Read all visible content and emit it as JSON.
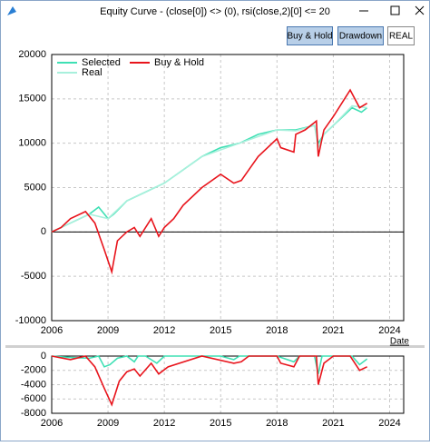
{
  "window": {
    "title": "Equity Curve - (close[0]) <> (0), rsi(close,2)[0] <= 20",
    "buttons": [
      "Buy & Hold",
      "Drawdown",
      "REAL"
    ]
  },
  "chart_data": [
    {
      "type": "line",
      "x_label": "Date",
      "legend": "upper left",
      "grid": true,
      "xlim": [
        2006,
        2024.75
      ],
      "xticks": [
        2006,
        2009,
        2012,
        2015,
        2018,
        2021,
        2024
      ],
      "ylim": [
        -10000,
        20000
      ],
      "yticks": [
        -10000,
        -5000,
        0,
        5000,
        10000,
        15000,
        20000
      ],
      "series": [
        {
          "name": "Selected",
          "color": "#3ee0b4",
          "x": [
            2006,
            2007,
            2008,
            2008.5,
            2009.0,
            2009.3,
            2010,
            2011,
            2012,
            2013,
            2014,
            2015,
            2016,
            2017,
            2018,
            2019,
            2020,
            2020.2,
            2020.5,
            2021,
            2022,
            2022.5,
            2022.8
          ],
          "values": [
            0,
            1000,
            2000,
            2800,
            1500,
            2000,
            3500,
            4500,
            5500,
            7000,
            8500,
            9500,
            10000,
            11000,
            11500,
            11500,
            12000,
            10000,
            11000,
            12000,
            14000,
            13500,
            14000
          ]
        },
        {
          "name": "Real",
          "color": "#a8f0dc",
          "x": [
            2006,
            2008,
            2009.0,
            2010,
            2012,
            2014,
            2016,
            2018,
            2019,
            2020,
            2020.2,
            2020.5,
            2021,
            2022,
            2022.8
          ],
          "values": [
            0,
            2000,
            1500,
            3500,
            5500,
            8500,
            10000,
            11500,
            11400,
            12000,
            9500,
            11000,
            12000,
            14200,
            14000
          ]
        },
        {
          "name": "Buy & Hold",
          "color": "#e8141c",
          "x": [
            2006,
            2006.5,
            2007,
            2007.8,
            2008.3,
            2008.8,
            2009.2,
            2009.5,
            2010,
            2010.4,
            2010.7,
            2011.3,
            2011.7,
            2012,
            2012.5,
            2013,
            2014,
            2015,
            2015.7,
            2016.1,
            2016.5,
            2017,
            2018,
            2018.2,
            2018.9,
            2019,
            2019.5,
            2020.1,
            2020.2,
            2020.5,
            2021,
            2021.9,
            2022.4,
            2022.8
          ],
          "values": [
            0,
            500,
            1500,
            2300,
            1000,
            -2000,
            -4500,
            -1000,
            0,
            500,
            -500,
            1500,
            -500,
            500,
            1500,
            3000,
            5000,
            6500,
            5500,
            5800,
            7000,
            8500,
            10500,
            9500,
            9000,
            11000,
            11500,
            12500,
            8500,
            11500,
            13000,
            16000,
            14000,
            14500
          ]
        }
      ]
    },
    {
      "type": "line",
      "grid": true,
      "xlim": [
        2006,
        2024.75
      ],
      "xticks": [
        2006,
        2009,
        2012,
        2015,
        2018,
        2021,
        2024
      ],
      "ylim": [
        -8000,
        0
      ],
      "yticks": [
        -8000,
        -6000,
        -4000,
        -2000,
        0
      ],
      "series": [
        {
          "color": "#3ee0b4",
          "x": [
            2006,
            2007,
            2008,
            2008.5,
            2008.8,
            2009.1,
            2009.5,
            2010,
            2010.4,
            2010.6,
            2011,
            2011.6,
            2012,
            2015,
            2015.7,
            2016,
            2018,
            2018.9,
            2019.2,
            2020,
            2020.2,
            2020.4,
            2021,
            2022,
            2022.4,
            2022.8
          ],
          "values": [
            0,
            -200,
            -300,
            0,
            -1500,
            -1200,
            -300,
            0,
            -800,
            0,
            0,
            -1000,
            0,
            0,
            -500,
            0,
            0,
            -800,
            0,
            0,
            -2500,
            0,
            0,
            0,
            -1200,
            -400
          ]
        },
        {
          "color": "#e8141c",
          "x": [
            2006,
            2007,
            2007.8,
            2008.3,
            2008.8,
            2009.2,
            2009.6,
            2010,
            2010.4,
            2010.7,
            2011.3,
            2011.7,
            2012.2,
            2014,
            2015.7,
            2016.1,
            2016.5,
            2018,
            2018.2,
            2018.9,
            2019.2,
            2020.1,
            2020.2,
            2020.5,
            2021,
            2021.9,
            2022.4,
            2022.8
          ],
          "values": [
            0,
            -500,
            0,
            -1500,
            -4500,
            -6800,
            -3500,
            -2200,
            -1800,
            -2800,
            -1000,
            -2500,
            -1500,
            0,
            -1000,
            -800,
            0,
            0,
            -1000,
            -1500,
            0,
            0,
            -4000,
            -1000,
            0,
            0,
            -2000,
            -1500
          ]
        }
      ]
    }
  ]
}
